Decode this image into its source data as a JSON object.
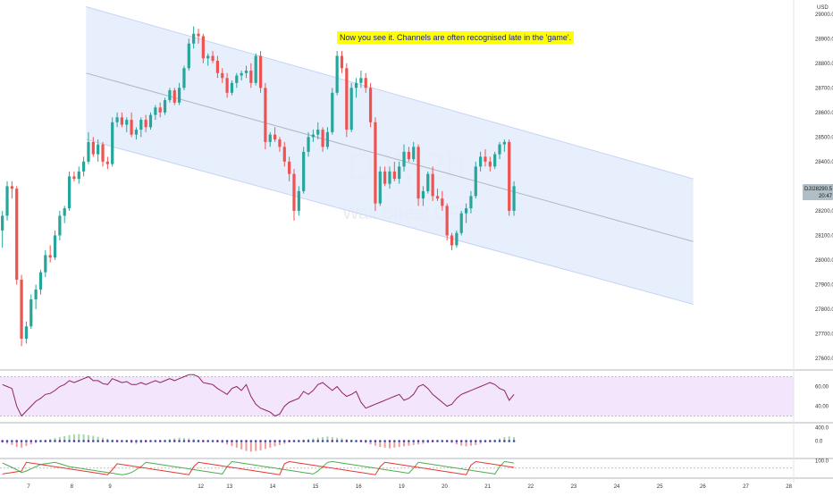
{
  "chart_data": [
    {
      "type": "candlestick",
      "role": "price",
      "currency_label": "USD",
      "watermark_symbol": "DJI, 2h",
      "watermark_name": "Wall Street CFD",
      "annotation": "Now you see it. Channels are often recognised late in the 'game'.",
      "last_price_label": "28290.5",
      "last_price_sublabel": "20:47",
      "symbol_tag": "DJI",
      "price_range": [
        27560,
        29050
      ],
      "price_ticks": [
        "29000.0",
        "28900.0",
        "28800.0",
        "28700.0",
        "28600.0",
        "28500.0",
        "28400.0",
        "28300.0",
        "28200.0",
        "28100.0",
        "28000.0",
        "27900.0",
        "27800.0",
        "27700.0",
        "27600.0"
      ],
      "x_ticks": [
        "7",
        "8",
        "9",
        "12",
        "13",
        "14",
        "15",
        "16",
        "19",
        "20",
        "21",
        "22",
        "23",
        "24",
        "25",
        "26",
        "27",
        "28"
      ],
      "x_range": [
        0,
        166
      ],
      "x_tick_positions": [
        6,
        15,
        23,
        42,
        48,
        57,
        66,
        75,
        84,
        93,
        102,
        111,
        120,
        129,
        138,
        147,
        156,
        165
      ],
      "channel": {
        "upper_start": [
          18,
          29030
        ],
        "upper_end": [
          145,
          28330
        ],
        "lower_start": [
          18,
          28490
        ],
        "lower_end": [
          145,
          27820
        ]
      },
      "candles": [
        [
          0,
          28120,
          28200,
          28050,
          28180
        ],
        [
          1,
          28180,
          28320,
          28160,
          28300
        ],
        [
          2,
          28300,
          28320,
          28250,
          28290
        ],
        [
          3,
          28290,
          28300,
          27900,
          27920
        ],
        [
          4,
          27920,
          27940,
          27650,
          27680
        ],
        [
          5,
          27680,
          27750,
          27660,
          27730
        ],
        [
          6,
          27730,
          27860,
          27720,
          27840
        ],
        [
          7,
          27840,
          27900,
          27800,
          27880
        ],
        [
          8,
          27880,
          27960,
          27860,
          27950
        ],
        [
          9,
          27950,
          28040,
          27930,
          28020
        ],
        [
          10,
          28020,
          28060,
          27990,
          28010
        ],
        [
          11,
          28010,
          28120,
          28000,
          28100
        ],
        [
          12,
          28100,
          28200,
          28080,
          28180
        ],
        [
          13,
          28180,
          28220,
          28150,
          28210
        ],
        [
          14,
          28210,
          28360,
          28200,
          28340
        ],
        [
          15,
          28340,
          28360,
          28320,
          28330
        ],
        [
          16,
          28330,
          28380,
          28310,
          28360
        ],
        [
          17,
          28360,
          28420,
          28340,
          28400
        ],
        [
          18,
          28400,
          28520,
          28390,
          28480
        ],
        [
          19,
          28480,
          28500,
          28420,
          28430
        ],
        [
          20,
          28430,
          28490,
          28400,
          28470
        ],
        [
          21,
          28470,
          28480,
          28380,
          28400
        ],
        [
          22,
          28400,
          28420,
          28370,
          28390
        ],
        [
          23,
          28390,
          28580,
          28380,
          28560
        ],
        [
          24,
          28560,
          28600,
          28540,
          28580
        ],
        [
          25,
          28580,
          28600,
          28540,
          28550
        ],
        [
          26,
          28550,
          28580,
          28520,
          28570
        ],
        [
          27,
          28570,
          28600,
          28500,
          28510
        ],
        [
          28,
          28510,
          28540,
          28490,
          28530
        ],
        [
          29,
          28530,
          28580,
          28500,
          28570
        ],
        [
          30,
          28570,
          28590,
          28520,
          28540
        ],
        [
          31,
          28540,
          28600,
          28530,
          28590
        ],
        [
          32,
          28590,
          28630,
          28570,
          28620
        ],
        [
          33,
          28620,
          28640,
          28580,
          28600
        ],
        [
          34,
          28600,
          28660,
          28590,
          28650
        ],
        [
          35,
          28650,
          28700,
          28640,
          28690
        ],
        [
          36,
          28690,
          28700,
          28630,
          28640
        ],
        [
          37,
          28640,
          28720,
          28630,
          28700
        ],
        [
          38,
          28700,
          28790,
          28690,
          28780
        ],
        [
          39,
          28780,
          28900,
          28770,
          28880
        ],
        [
          40,
          28880,
          28950,
          28860,
          28920
        ],
        [
          41,
          28920,
          28940,
          28880,
          28910
        ],
        [
          42,
          28910,
          28920,
          28800,
          28820
        ],
        [
          43,
          28820,
          28840,
          28790,
          28830
        ],
        [
          44,
          28830,
          28850,
          28800,
          28810
        ],
        [
          45,
          28810,
          28830,
          28740,
          28760
        ],
        [
          46,
          28760,
          28780,
          28720,
          28740
        ],
        [
          47,
          28740,
          28760,
          28660,
          28680
        ],
        [
          48,
          28680,
          28730,
          28670,
          28720
        ],
        [
          49,
          28720,
          28760,
          28700,
          28750
        ],
        [
          50,
          28750,
          28770,
          28730,
          28760
        ],
        [
          51,
          28760,
          28790,
          28740,
          28770
        ],
        [
          52,
          28770,
          28800,
          28700,
          28720
        ],
        [
          53,
          28720,
          28840,
          28710,
          28830
        ],
        [
          54,
          28830,
          28850,
          28680,
          28700
        ],
        [
          55,
          28700,
          28720,
          28450,
          28480
        ],
        [
          56,
          28480,
          28520,
          28460,
          28510
        ],
        [
          57,
          28510,
          28540,
          28480,
          28490
        ],
        [
          58,
          28490,
          28500,
          28440,
          28460
        ],
        [
          59,
          28460,
          28480,
          28380,
          28400
        ],
        [
          60,
          28400,
          28420,
          28320,
          28350
        ],
        [
          61,
          28350,
          28370,
          28160,
          28200
        ],
        [
          62,
          28200,
          28300,
          28180,
          28280
        ],
        [
          63,
          28280,
          28460,
          28270,
          28440
        ],
        [
          64,
          28440,
          28520,
          28420,
          28500
        ],
        [
          65,
          28500,
          28530,
          28480,
          28510
        ],
        [
          66,
          28510,
          28560,
          28490,
          28530
        ],
        [
          67,
          28530,
          28540,
          28440,
          28460
        ],
        [
          68,
          28460,
          28540,
          28450,
          28520
        ],
        [
          69,
          28520,
          28700,
          28510,
          28680
        ],
        [
          70,
          28680,
          28850,
          28670,
          28830
        ],
        [
          71,
          28830,
          28850,
          28760,
          28780
        ],
        [
          72,
          28780,
          28800,
          28500,
          28530
        ],
        [
          73,
          28530,
          28720,
          28520,
          28700
        ],
        [
          74,
          28700,
          28740,
          28660,
          28720
        ],
        [
          75,
          28720,
          28770,
          28700,
          28740
        ],
        [
          76,
          28740,
          28760,
          28680,
          28700
        ],
        [
          77,
          28700,
          28720,
          28540,
          28560
        ],
        [
          78,
          28560,
          28580,
          28200,
          28230
        ],
        [
          79,
          28230,
          28380,
          28220,
          28360
        ],
        [
          80,
          28360,
          28380,
          28300,
          28310
        ],
        [
          81,
          28310,
          28380,
          28290,
          28360
        ],
        [
          82,
          28360,
          28400,
          28320,
          28330
        ],
        [
          83,
          28330,
          28400,
          28310,
          28380
        ],
        [
          84,
          28380,
          28470,
          28360,
          28440
        ],
        [
          85,
          28440,
          28460,
          28400,
          28410
        ],
        [
          86,
          28410,
          28480,
          28400,
          28460
        ],
        [
          87,
          28460,
          28470,
          28220,
          28250
        ],
        [
          88,
          28250,
          28300,
          28220,
          28280
        ],
        [
          89,
          28280,
          28360,
          28270,
          28350
        ],
        [
          90,
          28350,
          28380,
          28240,
          28260
        ],
        [
          91,
          28260,
          28290,
          28240,
          28250
        ],
        [
          92,
          28250,
          28280,
          28200,
          28220
        ],
        [
          93,
          28220,
          28230,
          28080,
          28100
        ],
        [
          94,
          28100,
          28110,
          28040,
          28060
        ],
        [
          95,
          28060,
          28120,
          28050,
          28110
        ],
        [
          96,
          28110,
          28200,
          28100,
          28190
        ],
        [
          97,
          28190,
          28230,
          28150,
          28210
        ],
        [
          98,
          28210,
          28280,
          28190,
          28260
        ],
        [
          99,
          28260,
          28400,
          28250,
          28380
        ],
        [
          100,
          28380,
          28440,
          28360,
          28420
        ],
        [
          101,
          28420,
          28450,
          28380,
          28400
        ],
        [
          102,
          28400,
          28420,
          28360,
          28380
        ],
        [
          103,
          28380,
          28440,
          28370,
          28430
        ],
        [
          104,
          28430,
          28480,
          28410,
          28470
        ],
        [
          105,
          28470,
          28490,
          28440,
          28480
        ],
        [
          106,
          28480,
          28490,
          28180,
          28200
        ],
        [
          107,
          28200,
          28320,
          28180,
          28300
        ]
      ]
    },
    {
      "type": "line",
      "role": "rsi",
      "y_range": [
        25,
        75
      ],
      "y_ticks": [
        "60.00",
        "40.00"
      ],
      "band": [
        30,
        70
      ],
      "values": [
        62,
        60,
        58,
        40,
        30,
        35,
        40,
        45,
        48,
        52,
        53,
        56,
        60,
        62,
        66,
        64,
        66,
        68,
        70,
        66,
        66,
        63,
        62,
        68,
        66,
        64,
        65,
        62,
        62,
        64,
        62,
        64,
        66,
        64,
        66,
        68,
        66,
        68,
        70,
        72,
        72,
        70,
        64,
        63,
        62,
        58,
        55,
        52,
        58,
        60,
        56,
        62,
        50,
        42,
        38,
        36,
        34,
        30,
        32,
        40,
        44,
        46,
        48,
        55,
        52,
        56,
        62,
        64,
        60,
        56,
        60,
        54,
        50,
        52,
        55,
        44,
        38,
        40,
        42,
        44,
        46,
        48,
        50,
        52,
        46,
        48,
        52,
        60,
        62,
        58,
        52,
        48,
        44,
        40,
        42,
        48,
        52,
        54,
        56,
        58,
        60,
        62,
        64,
        62,
        58,
        56,
        46,
        52
      ]
    },
    {
      "type": "bar",
      "role": "histogram",
      "y_range": [
        -500,
        500
      ],
      "y_ticks": [
        "400.0",
        "0.0"
      ],
      "values": [
        -50,
        -80,
        -120,
        -180,
        -200,
        -150,
        -100,
        -60,
        -20,
        30,
        60,
        90,
        120,
        150,
        180,
        200,
        210,
        200,
        180,
        160,
        130,
        100,
        70,
        40,
        10,
        -20,
        -40,
        -60,
        -80,
        -60,
        -40,
        -20,
        0,
        20,
        40,
        60,
        80,
        100,
        90,
        80,
        60,
        40,
        20,
        0,
        -20,
        -40,
        -60,
        -100,
        -150,
        -200,
        -250,
        -300,
        -320,
        -300,
        -280,
        -240,
        -200,
        -160,
        -120,
        -80,
        -40,
        0,
        20,
        40,
        60,
        80,
        100,
        120,
        140,
        120,
        100,
        80,
        60,
        40,
        20,
        -20,
        -60,
        -100,
        -140,
        -180,
        -200,
        -220,
        -200,
        -180,
        -160,
        -140,
        -120,
        -100,
        -80,
        -60,
        -40,
        -20,
        0,
        -20,
        -60,
        -100,
        -140,
        -160,
        -140,
        -120,
        -80,
        -40,
        0,
        40,
        80,
        120,
        140,
        120
      ]
    },
    {
      "type": "line",
      "role": "oscillator",
      "y_range": [
        0,
        110
      ],
      "y_ticks": [
        "100.0"
      ],
      "series": [
        {
          "values": [
            85,
            70,
            55,
            40,
            20,
            30,
            45,
            60,
            75,
            80,
            85,
            90,
            80,
            70,
            60,
            55,
            50,
            45,
            40,
            35,
            30,
            25,
            20,
            15,
            10,
            5,
            10,
            20,
            40,
            60,
            90,
            85,
            80,
            75,
            70,
            65,
            60,
            55,
            50,
            45,
            40,
            35,
            30,
            25,
            20,
            15,
            10,
            60,
            95,
            90,
            85,
            80,
            75,
            70,
            65,
            60,
            55,
            50,
            45,
            40,
            35,
            30,
            25,
            20,
            15,
            10,
            30,
            60,
            90,
            95,
            90,
            85,
            80,
            75,
            70,
            65,
            60,
            55,
            50,
            45,
            40,
            35,
            30,
            25,
            20,
            15,
            50,
            90,
            85,
            80,
            75,
            70,
            65,
            60,
            55,
            50,
            45,
            40,
            35,
            30,
            25,
            20,
            15,
            10,
            60,
            95,
            90,
            85
          ]
        },
        {
          "values": [
            10,
            15,
            20,
            25,
            30,
            90,
            85,
            80,
            75,
            70,
            65,
            60,
            55,
            50,
            45,
            40,
            35,
            30,
            25,
            20,
            15,
            10,
            5,
            40,
            80,
            75,
            70,
            65,
            60,
            55,
            50,
            45,
            40,
            35,
            30,
            25,
            20,
            15,
            10,
            5,
            60,
            90,
            85,
            80,
            75,
            70,
            65,
            60,
            55,
            50,
            45,
            40,
            35,
            30,
            25,
            20,
            15,
            10,
            5,
            80,
            95,
            90,
            85,
            80,
            75,
            70,
            65,
            60,
            55,
            50,
            45,
            40,
            35,
            30,
            25,
            20,
            15,
            10,
            5,
            60,
            90,
            85,
            80,
            75,
            70,
            65,
            60,
            55,
            50,
            45,
            40,
            35,
            30,
            25,
            20,
            15,
            10,
            5,
            70,
            95,
            90,
            85,
            80,
            75,
            70,
            65,
            60,
            55
          ]
        }
      ]
    }
  ],
  "colors": {
    "up": "#26a69a",
    "down": "#ef5350",
    "channel_fill": "#e3ecfd",
    "channel_mid": "#b0b4c4",
    "rsi_line": "#8e2463",
    "rsi_band": "#f3e5fb",
    "hist_up": "#a5d6a7",
    "hist_down": "#ef9a9a",
    "osc_green": "#4caf50",
    "osc_red": "#e53935",
    "axis_text": "#333333",
    "pane_border": "#b2b5be",
    "price_tag": "#b0bec5"
  }
}
